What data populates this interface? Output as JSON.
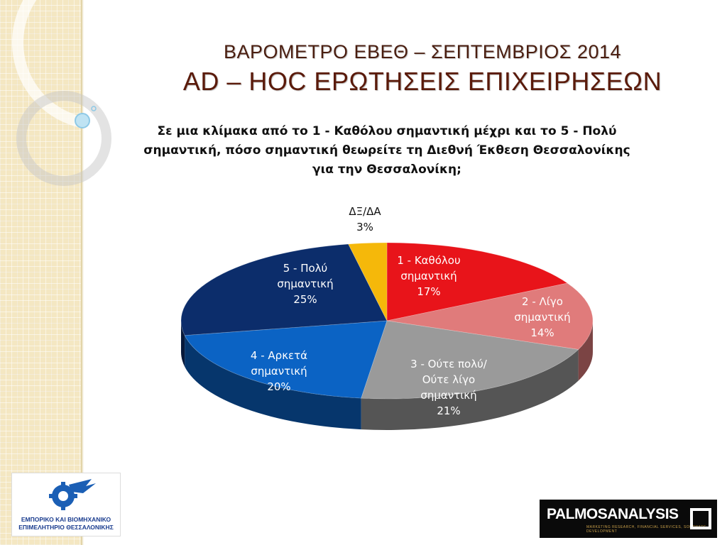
{
  "title_line1": "ΒΑΡΟΜΕΤΡΟ ΕΒΕΘ – ΣΕΠΤΕΜΒΡΙΟΣ 2014",
  "title_line2": "AD – HOC ΕΡΩΤΗΣΕΙΣ ΕΠΙΧΕΙΡΗΣΕΩΝ",
  "question": "Σε μια κλίμακα από το 1 - Καθόλου σημαντική μέχρι και το 5 - Πολύ σημαντική, πόσο σημαντική θεωρείτε τη Διεθνή Έκθεση Θεσσαλονίκης για την Θεσσαλονίκη;",
  "logo_left": {
    "line1": "ΕΜΠΟΡΙΚΟ ΚΑΙ ΒΙΟΜΗΧΑΝΙΚΟ",
    "line2": "ΕΠΙΜΕΛΗΤΗΡΙΟ ΘΕΣΣΑΛΟΝΙΚΗΣ",
    "icon": "gear-wing-emblem",
    "color": "#1b5fb5"
  },
  "logo_right": {
    "part1": "PALMOS",
    "part2": "ANALYSIS",
    "tagline": "MARKETING RESEARCH, FINANCIAL SERVICES, SOFTWARE DEVELOPMENT"
  },
  "chart_data": {
    "type": "pie",
    "style": "3d",
    "slices": [
      {
        "label_lines": [
          "1 - Καθόλου",
          "σημαντική"
        ],
        "value": 17,
        "value_label": "17%",
        "color": "#e8141a",
        "label_color": "#ffffff"
      },
      {
        "label_lines": [
          "2 - Λίγο",
          "σημαντική"
        ],
        "value": 14,
        "value_label": "14%",
        "color": "#e07b7b",
        "label_color": "#ffffff"
      },
      {
        "label_lines": [
          "3 - Ούτε πολύ/",
          "Ούτε λίγο",
          "σημαντική"
        ],
        "value": 21,
        "value_label": "21%",
        "color": "#9a9a9a",
        "label_color": "#ffffff"
      },
      {
        "label_lines": [
          "4 - Αρκετά",
          "σημαντική"
        ],
        "value": 20,
        "value_label": "20%",
        "color": "#0b63c4",
        "label_color": "#ffffff"
      },
      {
        "label_lines": [
          "5 - Πολύ",
          "σημαντική"
        ],
        "value": 25,
        "value_label": "25%",
        "color": "#0c2d6b",
        "label_color": "#ffffff"
      },
      {
        "label_lines": [
          "ΔΞ/ΔΑ"
        ],
        "value": 3,
        "value_label": "3%",
        "color": "#f5b80a",
        "label_color": "#111111"
      }
    ]
  }
}
